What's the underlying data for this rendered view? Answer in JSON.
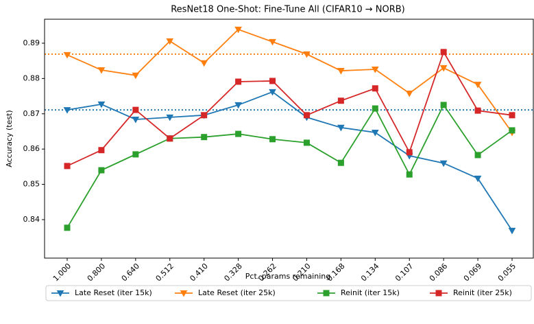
{
  "chart_data": {
    "type": "line",
    "title": "ResNet18 One-Shot: Fine-Tune All (CIFAR10 → NORB)",
    "x_label": "Pct. params remaining",
    "y_label": "Accuracy (test)",
    "categories": [
      "1.000",
      "0.800",
      "0.640",
      "0.512",
      "0.410",
      "0.328",
      "0.262",
      "0.210",
      "0.168",
      "0.134",
      "0.107",
      "0.086",
      "0.069",
      "0.055"
    ],
    "series": [
      {
        "name": "Late Reset (iter 15k)",
        "color": "#1f77b4",
        "marker": "triangle-down",
        "values": [
          0.8711,
          0.8727,
          0.8684,
          0.869,
          0.8696,
          0.8725,
          0.8762,
          0.869,
          0.8661,
          0.8647,
          0.8581,
          0.856,
          0.8517,
          0.8369
        ]
      },
      {
        "name": "Late Reset (iter 25k)",
        "color": "#ff7f0e",
        "marker": "triangle-down",
        "values": [
          0.8867,
          0.8824,
          0.8809,
          0.8906,
          0.8844,
          0.8939,
          0.8904,
          0.8869,
          0.8822,
          0.8826,
          0.8758,
          0.883,
          0.8783,
          0.8647
        ]
      },
      {
        "name": "Reinit (iter 15k)",
        "color": "#2ca02c",
        "marker": "square",
        "values": [
          0.8377,
          0.854,
          0.8585,
          0.863,
          0.8634,
          0.8643,
          0.8628,
          0.8618,
          0.8561,
          0.8715,
          0.8528,
          0.8725,
          0.8583,
          0.8653
        ]
      },
      {
        "name": "Reinit (iter 25k)",
        "color": "#d62728",
        "marker": "square",
        "values": [
          0.8552,
          0.8597,
          0.8711,
          0.863,
          0.8696,
          0.8791,
          0.8793,
          0.8696,
          0.8737,
          0.8772,
          0.8591,
          0.8875,
          0.8709,
          0.8696
        ]
      }
    ],
    "reference_lines": [
      {
        "value": 0.8711,
        "color": "#1f77b4"
      },
      {
        "value": 0.8869,
        "color": "#ff7f0e"
      }
    ],
    "ylim": [
      0.8291,
      0.8968
    ],
    "yticks": [
      0.84,
      0.85,
      0.86,
      0.87,
      0.88,
      0.89
    ],
    "legend": "bottom"
  }
}
